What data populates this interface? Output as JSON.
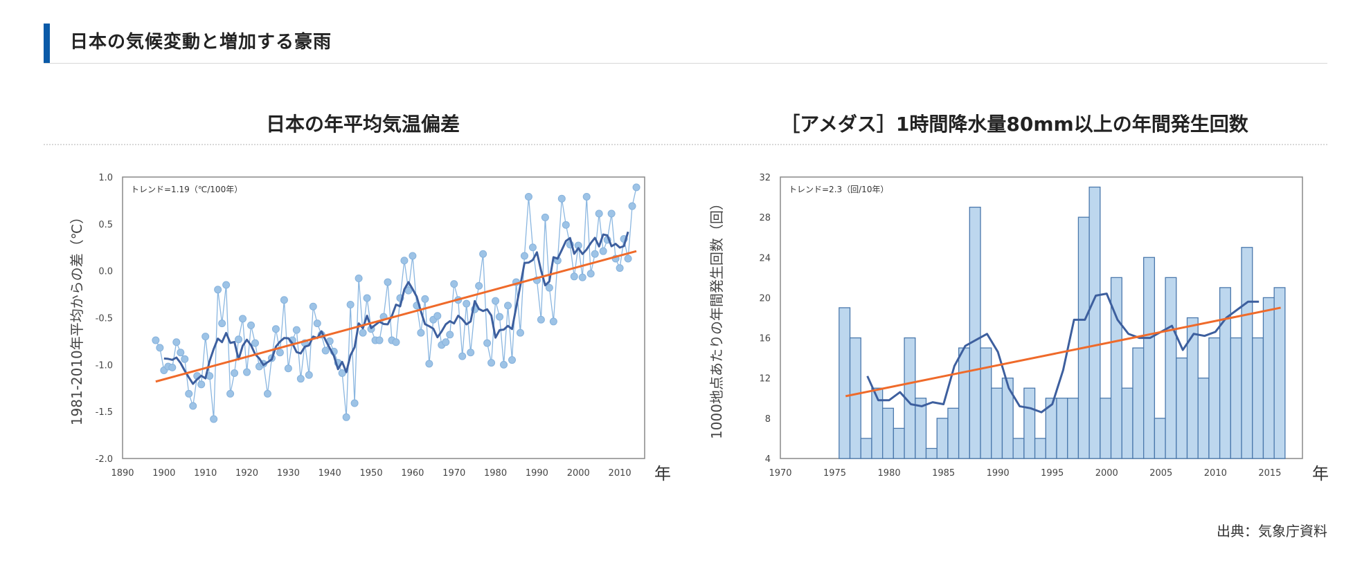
{
  "header": {
    "title": "日本の気候変動と増加する豪雨"
  },
  "source": "出典：気象庁資料",
  "colors": {
    "accent": "#0a5aa8",
    "trend": "#ef6a2a",
    "moving_avg": "#3d5f9e",
    "points": "#9dc3e6",
    "bars": "#bdd7ee"
  },
  "chart_data": [
    {
      "type": "line",
      "title": "日本の年平均気温偏差",
      "annotation": "トレンド=1.19（℃/100年）",
      "xlabel": "年",
      "ylabel": "1981-2010年平均からの差（℃）",
      "xlim": [
        1890,
        2016
      ],
      "ylim": [
        -2.0,
        1.0
      ],
      "xticks": [
        1890,
        1900,
        1910,
        1920,
        1930,
        1940,
        1950,
        1960,
        1970,
        1980,
        1990,
        2000,
        2010
      ],
      "yticks": [
        1.0,
        0.5,
        0.0,
        -0.5,
        -1.0,
        -1.5,
        -2.0
      ],
      "ytick_labels": [
        "1.0",
        "0.5",
        "0.0",
        "-0.5",
        "-1.0",
        "-1.5",
        "-2.0"
      ],
      "start_year": 1898,
      "series": [
        {
          "name": "annual anomaly",
          "values": [
            -0.74,
            -0.82,
            -1.06,
            -1.02,
            -1.03,
            -0.76,
            -0.87,
            -0.94,
            -1.31,
            -1.44,
            -1.12,
            -1.21,
            -0.7,
            -1.12,
            -1.58,
            -0.2,
            -0.56,
            -0.15,
            -1.31,
            -1.09,
            -0.73,
            -0.51,
            -1.08,
            -0.58,
            -0.77,
            -1.02,
            -0.99,
            -1.31,
            -0.93,
            -0.62,
            -0.87,
            -0.31,
            -1.04,
            -0.74,
            -0.63,
            -1.15,
            -0.77,
            -1.11,
            -0.38,
            -0.56,
            -0.68,
            -0.85,
            -0.75,
            -0.86,
            -0.98,
            -1.09,
            -1.56,
            -0.36,
            -1.41,
            -0.08,
            -0.66,
            -0.29,
            -0.62,
            -0.74,
            -0.74,
            -0.49,
            -0.12,
            -0.74,
            -0.76,
            -0.29,
            0.11,
            -0.21,
            0.16,
            -0.37,
            -0.66,
            -0.3,
            -0.99,
            -0.52,
            -0.48,
            -0.79,
            -0.76,
            -0.68,
            -0.14,
            -0.31,
            -0.91,
            -0.35,
            -0.87,
            -0.41,
            -0.16,
            0.18,
            -0.77,
            -0.98,
            -0.32,
            -0.49,
            -1.0,
            -0.37,
            -0.95,
            -0.12,
            -0.66,
            0.16,
            0.79,
            0.25,
            -0.1,
            -0.52,
            0.57,
            -0.18,
            -0.54,
            0.11,
            0.77,
            0.49,
            0.28,
            -0.06,
            0.27,
            -0.07,
            0.79,
            -0.03,
            0.18,
            0.61,
            0.21,
            0.33,
            0.61,
            0.13,
            0.03,
            0.34,
            0.13,
            0.69,
            0.89
          ]
        },
        {
          "name": "5-year running mean",
          "window": 5
        }
      ],
      "trend": {
        "x": [
          1898,
          2014
        ],
        "y": [
          -1.18,
          0.21
        ]
      },
      "grid": false
    },
    {
      "type": "bar",
      "title": "［アメダス］1時間降水量80mm以上の年間発生回数",
      "annotation": "トレンド=2.3（回/10年）",
      "xlabel": "年",
      "ylabel": "1000地点あたりの年間発生回数（回）",
      "xlim": [
        1970,
        2018
      ],
      "ylim": [
        4,
        32
      ],
      "xticks": [
        1970,
        1975,
        1980,
        1985,
        1990,
        1995,
        2000,
        2005,
        2010,
        2015
      ],
      "yticks": [
        32,
        28,
        24,
        20,
        16,
        12,
        8,
        4
      ],
      "start_year": 1976,
      "series": [
        {
          "name": "annual count",
          "values": [
            19,
            16,
            6,
            11,
            9,
            7,
            16,
            10,
            5,
            8,
            9,
            15,
            29,
            15,
            11,
            12,
            6,
            11,
            6,
            10,
            10,
            10,
            28,
            31,
            10,
            22,
            11,
            15,
            24,
            8,
            22,
            14,
            18,
            12,
            16,
            21,
            16,
            25,
            16,
            20,
            21
          ]
        },
        {
          "name": "5-year running mean",
          "window": 5
        }
      ],
      "trend": {
        "x": [
          1976,
          2016
        ],
        "y": [
          10.2,
          19.0
        ]
      },
      "grid": false
    }
  ]
}
